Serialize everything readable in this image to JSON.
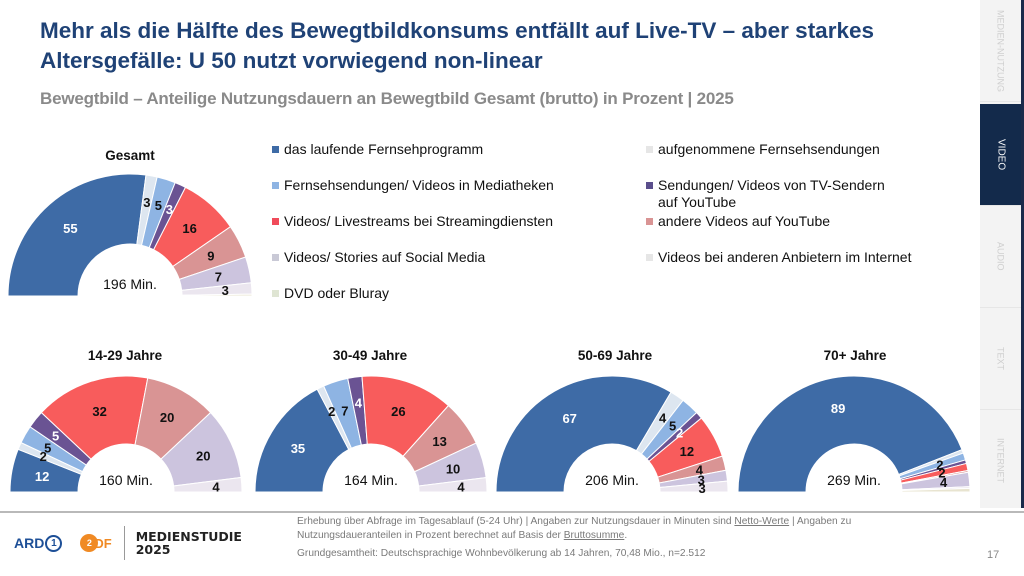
{
  "header": {
    "title": "Mehr als die Hälfte des Bewegtbildkonsums entfällt auf Live-TV – aber starkes Altersgefälle: U 50 nutzt vorwiegend non-linear",
    "subtitle": "Bewegtbild – Anteilige Nutzungsdauern an Bewegtbild Gesamt (brutto) in Prozent | 2025"
  },
  "side_nav": {
    "tabs": [
      {
        "label": "MEDIEN-NUTZUNG",
        "active": false
      },
      {
        "label": "VIDEO",
        "active": true
      },
      {
        "label": "AUDIO",
        "active": false
      },
      {
        "label": "TEXT",
        "active": false
      },
      {
        "label": "INTERNET",
        "active": false
      }
    ]
  },
  "colors": {
    "title": "#1f4276",
    "nav_active": "#132a4b"
  },
  "chart_data": {
    "type": "pie",
    "variant": "half-donut",
    "title": "Bewegtbild – Anteilige Nutzungsdauern an Bewegtbild Gesamt (brutto) in Prozent | 2025",
    "legend_position": "right-of-first-chart",
    "series_names": [
      "das laufende Fernsehprogramm",
      "aufgenommene Fernsehsendungen",
      "Fernsehsendungen/ Videos in Mediatheken",
      "Sendungen/ Videos von TV-Sendern auf YouTube",
      "Videos/ Livestreams bei Streamingdiensten",
      "andere Videos auf YouTube",
      "Videos/ Stories auf Social Media",
      "Videos bei anderen Anbietern im Internet",
      "DVD oder Bluray"
    ],
    "series_colors": [
      "#3e6ba6",
      "#dde6f0",
      "#8eb4e3",
      "#6a5393",
      "#f85c5c",
      "#d99494",
      "#ccc4de",
      "#ebe6ef",
      "#e8e4d0"
    ],
    "label_colors": [
      "#ffffff",
      "#111111",
      "#111111",
      "#ffffff",
      "#111111",
      "#111111",
      "#111111",
      "#111111",
      "#111111"
    ],
    "charts": [
      {
        "name": "Gesamt",
        "total_minutes": "196 Min.",
        "values": [
          55,
          3,
          5,
          3,
          16,
          9,
          7,
          3,
          0.5
        ],
        "labels": [
          "55",
          "3",
          "5",
          "3",
          "16",
          "9",
          "7",
          "3",
          ""
        ]
      },
      {
        "name": "14-29 Jahre",
        "total_minutes": "160 Min.",
        "values": [
          12,
          2,
          5,
          5,
          32,
          20,
          20,
          4,
          0
        ],
        "labels": [
          "12",
          "2",
          "5",
          "5",
          "32",
          "20",
          "20",
          "4",
          ""
        ]
      },
      {
        "name": "30-49 Jahre",
        "total_minutes": "164 Min.",
        "values": [
          35,
          2,
          7,
          4,
          26,
          13,
          10,
          4,
          0
        ],
        "labels": [
          "35",
          "2",
          "7",
          "4",
          "26",
          "13",
          "10",
          "4",
          ""
        ]
      },
      {
        "name": "50-69 Jahre",
        "total_minutes": "206 Min.",
        "values": [
          67,
          4,
          5,
          2,
          12,
          4,
          3,
          3,
          0
        ],
        "labels": [
          "67",
          "4",
          "5",
          "2",
          "12",
          "4",
          "3",
          "3",
          ""
        ]
      },
      {
        "name": "70+ Jahre",
        "total_minutes": "269 Min.",
        "values": [
          89,
          1,
          2,
          1,
          2,
          0.5,
          4,
          0.5,
          1
        ],
        "labels": [
          "89",
          "",
          "2",
          "",
          "2",
          "",
          "4",
          "",
          ""
        ]
      }
    ]
  },
  "legend": {
    "items": [
      {
        "label": "das laufende Fernsehprogramm",
        "color": "#3e6ba6"
      },
      {
        "label": "aufgenommene Fernsehsendungen",
        "color": "#e6e6e6"
      },
      {
        "label": "Fernsehsendungen/ Videos in Mediatheken",
        "color": "#8eb4e3"
      },
      {
        "label": "Sendungen/ Videos von TV-Sendern auf YouTube",
        "color": "#5a4e8c"
      },
      {
        "label": "Videos/ Livestreams bei Streamingdiensten",
        "color": "#f04b5a"
      },
      {
        "label": "andere Videos auf YouTube",
        "color": "#d99494"
      },
      {
        "label": "Videos/ Stories auf Social Media",
        "color": "#c9c9d6"
      },
      {
        "label": "Videos bei anderen Anbietern im Internet",
        "color": "#e6e6e6"
      },
      {
        "label": "DVD oder Bluray",
        "color": "#dfe5d3"
      }
    ]
  },
  "footer": {
    "logo_ard": "ARD",
    "logo_ard_num": "1",
    "logo_zdf": "DF",
    "logo_zdf_circle": "2",
    "studie_line1": "MEDIENSTUDIE",
    "studie_line2": "2025",
    "note1_a": "Erhebung über Abfrage im Tagesablauf (5-24 Uhr) | Angaben zur Nutzungsdauer in Minuten sind ",
    "note1_link1": "Netto-Werte",
    "note1_b": " | Angaben zu Nutzungsdaueranteilen in Prozent berechnet auf Basis der ",
    "note1_link2": "Bruttosumme",
    "note1_c": ".",
    "note2": "Grundgesamtheit: Deutschsprachige Wohnbevölkerung ab 14 Jahren, 70,48 Mio., n=2.512",
    "page_number": "17"
  }
}
